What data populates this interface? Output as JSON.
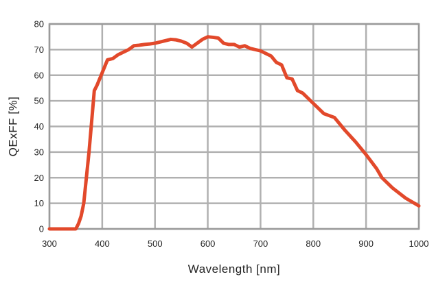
{
  "chart_data": {
    "type": "line",
    "title": "",
    "xlabel": "Wavelength [nm]",
    "ylabel": "QExFF [%]",
    "xlim": [
      300,
      1000
    ],
    "ylim": [
      0,
      80
    ],
    "x_ticks": [
      300,
      400,
      500,
      600,
      700,
      800,
      900,
      1000
    ],
    "y_ticks": [
      0,
      10,
      20,
      30,
      40,
      50,
      60,
      70,
      80
    ],
    "grid": true,
    "colors": {
      "line": "#e2492b",
      "grid": "#b0b0b0",
      "frame": "#9a9a9a"
    },
    "series": [
      {
        "x": [
          300,
          320,
          340,
          350,
          355,
          360,
          365,
          370,
          375,
          380,
          385,
          390,
          400,
          410,
          420,
          430,
          440,
          450,
          460,
          470,
          480,
          490,
          500,
          510,
          520,
          530,
          540,
          550,
          560,
          570,
          580,
          590,
          600,
          610,
          620,
          630,
          640,
          650,
          660,
          670,
          680,
          690,
          700,
          710,
          720,
          730,
          740,
          750,
          760,
          770,
          780,
          790,
          800,
          820,
          840,
          850,
          860,
          880,
          900,
          920,
          930,
          950,
          975,
          1000
        ],
        "y": [
          0,
          0,
          0,
          0,
          2,
          5,
          10,
          20,
          30,
          42,
          54,
          56,
          61,
          66,
          66.5,
          68,
          69,
          70,
          71.5,
          71.7,
          72,
          72.2,
          72.5,
          73,
          73.5,
          74,
          73.8,
          73.3,
          72.5,
          71,
          72.5,
          74,
          75,
          74.8,
          74.5,
          72.5,
          72,
          72,
          71,
          71.5,
          70.5,
          70,
          69.5,
          68.5,
          67.5,
          65,
          64,
          59,
          58.5,
          54,
          53,
          51,
          49,
          45,
          43.5,
          41,
          38.5,
          34,
          29,
          23.5,
          20,
          16,
          12,
          9
        ]
      }
    ]
  }
}
